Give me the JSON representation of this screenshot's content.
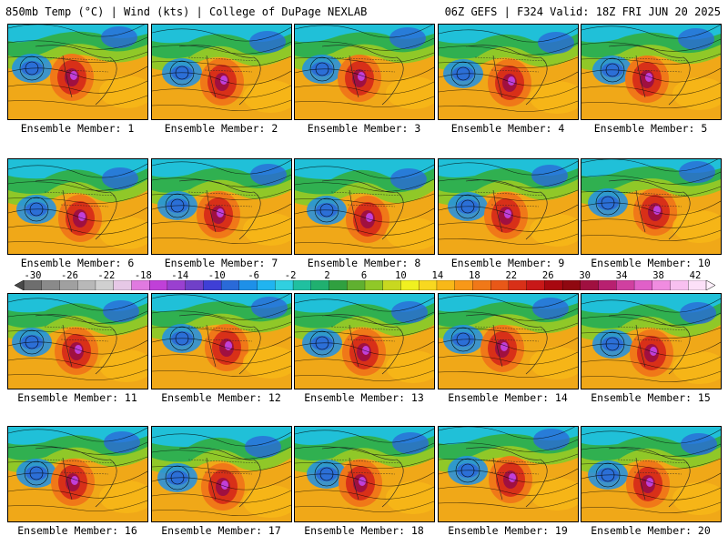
{
  "header": {
    "left": "850mb Temp (°C) | Wind (kts) | College of DuPage NEXLAB",
    "right": "06Z GEFS | F324 Valid: 18Z FRI JUN 20 2025"
  },
  "members": [
    "Ensemble Member: 1",
    "Ensemble Member: 2",
    "Ensemble Member: 3",
    "Ensemble Member: 4",
    "Ensemble Member: 5",
    "Ensemble Member: 6",
    "Ensemble Member: 7",
    "Ensemble Member: 8",
    "Ensemble Member: 9",
    "Ensemble Member: 10",
    "Ensemble Member: 11",
    "Ensemble Member: 12",
    "Ensemble Member: 13",
    "Ensemble Member: 14",
    "Ensemble Member: 15",
    "Ensemble Member: 16",
    "Ensemble Member: 17",
    "Ensemble Member: 18",
    "Ensemble Member: 19",
    "Ensemble Member: 20"
  ],
  "colorbar": {
    "ticks": [
      "-30",
      "-26",
      "-22",
      "-18",
      "-14",
      "-10",
      "-6",
      "-2",
      "2",
      "6",
      "10",
      "14",
      "18",
      "22",
      "26",
      "30",
      "34",
      "38",
      "42"
    ],
    "colors": [
      "#6e6e6e",
      "#8a8a8a",
      "#a0a0a0",
      "#b8b8b8",
      "#d0d0d0",
      "#e6c8e6",
      "#e07ae0",
      "#c040d8",
      "#9a40d0",
      "#7040c8",
      "#3f3fd6",
      "#2a6ad8",
      "#1e90e8",
      "#20b4f0",
      "#30d0e0",
      "#20c0a0",
      "#20b070",
      "#30a040",
      "#60b030",
      "#90c828",
      "#c8d820",
      "#f0f020",
      "#f8d820",
      "#f8b818",
      "#f89818",
      "#f07818",
      "#e85818",
      "#d83018",
      "#c81818",
      "#a80810",
      "#900810",
      "#a01040",
      "#b82070",
      "#d040a0",
      "#e060c8",
      "#f08ce0",
      "#f8c0f0",
      "#fce0f8"
    ]
  }
}
